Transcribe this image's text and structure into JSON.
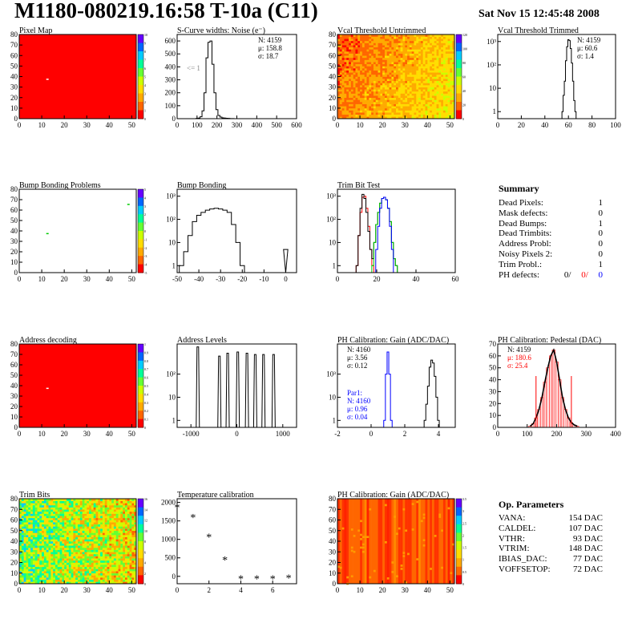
{
  "header": {
    "title": "M1180-080219.16:58 T-10a (C11)",
    "date": "Sat Nov 15 12:45:48 2008"
  },
  "colors": {
    "red": "#ff0000",
    "blue": "#0000ff",
    "green": "#00cc00",
    "black": "#000000"
  },
  "palette": [
    "#ff0000",
    "#ff6600",
    "#ffaa00",
    "#ffdd00",
    "#ccff00",
    "#66ff33",
    "#00ff99",
    "#00ccff",
    "#0066ff",
    "#6600ff"
  ],
  "chart_data": [
    {
      "id": "pixel_map",
      "type": "heatmap",
      "title": "Pixel Map",
      "xlim": [
        0,
        52
      ],
      "ylim": [
        0,
        80
      ],
      "xticks": [
        "0",
        "10",
        "20",
        "30",
        "40",
        "50"
      ],
      "yticks": [
        "0",
        "10",
        "20",
        "30",
        "40",
        "50",
        "60",
        "70",
        "80"
      ],
      "zlim": [
        0,
        10
      ],
      "zticks": [
        "0",
        "1",
        "2",
        "3",
        "4",
        "5",
        "6",
        "7",
        "8",
        "9",
        "10"
      ],
      "fill": "uniform red",
      "special_pixels": [
        {
          "x": 12,
          "y": 38,
          "value": 0
        }
      ]
    },
    {
      "id": "scurve",
      "type": "histogram",
      "title": "S-Curve widths: Noise (e⁻)",
      "xlim": [
        0,
        600
      ],
      "ylim": [
        0,
        650
      ],
      "log": false,
      "xticks": [
        "0",
        "100",
        "200",
        "300",
        "400",
        "500",
        "600"
      ],
      "yticks": [
        "0",
        "100",
        "200",
        "300",
        "400",
        "500",
        "600"
      ],
      "stats": [
        "N: 4159",
        "μ: 158.8",
        "σ: 18.7"
      ],
      "annotation": "<= 1",
      "x": [
        90,
        100,
        110,
        120,
        130,
        140,
        150,
        160,
        170,
        180,
        190,
        200,
        210,
        220,
        230,
        240,
        250,
        260,
        270,
        280,
        290
      ],
      "values": [
        0,
        2,
        5,
        15,
        60,
        200,
        470,
        590,
        600,
        420,
        200,
        70,
        25,
        12,
        6,
        5,
        3,
        2,
        1,
        1,
        0
      ]
    },
    {
      "id": "vcal_untrimmed",
      "type": "heatmap",
      "title": "Vcal Threshold Untrimmed",
      "xlim": [
        0,
        52
      ],
      "ylim": [
        0,
        80
      ],
      "xticks": [
        "0",
        "10",
        "20",
        "30",
        "40",
        "50"
      ],
      "yticks": [
        "0",
        "10",
        "20",
        "30",
        "40",
        "50",
        "60",
        "70",
        "80"
      ],
      "zlim": [
        0,
        140
      ],
      "zticks": [
        "0",
        "20",
        "40",
        "60",
        "80",
        "100",
        "120"
      ],
      "fill": "noisy red-orange to yellow-green gradient"
    },
    {
      "id": "vcal_trimmed",
      "type": "histogram",
      "title": "Vcal Threshold Trimmed",
      "xlim": [
        0,
        100
      ],
      "ylim": [
        0.5,
        2000
      ],
      "log": true,
      "xticks": [
        "0",
        "20",
        "40",
        "60",
        "80",
        "100"
      ],
      "yticks": [
        "1",
        "10",
        "10²",
        "10³"
      ],
      "stats": [
        "N: 4159",
        "μ: 60.6",
        "σ: 1.4"
      ],
      "x": [
        55,
        56,
        57,
        58,
        59,
        60,
        61,
        62,
        63,
        64,
        65,
        66
      ],
      "values": [
        1,
        5,
        20,
        150,
        600,
        1200,
        1100,
        500,
        120,
        20,
        3,
        1
      ]
    },
    {
      "id": "bump_map",
      "type": "heatmap",
      "title": "Bump Bonding Problems",
      "xlim": [
        0,
        52
      ],
      "ylim": [
        0,
        80
      ],
      "xticks": [
        "0",
        "10",
        "20",
        "30",
        "40",
        "50"
      ],
      "yticks": [
        "0",
        "10",
        "20",
        "30",
        "40",
        "50",
        "60",
        "70",
        "80"
      ],
      "zlim": [
        -5,
        5
      ],
      "zticks": [
        "-5",
        "-4",
        "-3",
        "-2",
        "-1",
        "0",
        "1",
        "2",
        "3",
        "4",
        "5"
      ],
      "fill": "white",
      "special_pixels": [
        {
          "x": 12,
          "y": 38
        },
        {
          "x": 48,
          "y": 66
        }
      ]
    },
    {
      "id": "bump_hist",
      "type": "histogram",
      "title": "Bump Bonding",
      "xlim": [
        -50,
        5
      ],
      "ylim": [
        0.5,
        2000
      ],
      "log": true,
      "xticks": [
        "-50",
        "-40",
        "-30",
        "-20",
        "-10",
        "0"
      ],
      "yticks": [
        "1",
        "10",
        "10²",
        "10³"
      ],
      "x": [
        -48,
        -46,
        -44,
        -42,
        -40,
        -38,
        -36,
        -34,
        -32,
        -30,
        -28,
        -26,
        -24,
        -22,
        -20,
        -18,
        -1,
        0,
        1
      ],
      "values": [
        1,
        4,
        20,
        80,
        150,
        200,
        250,
        280,
        300,
        280,
        250,
        200,
        60,
        10,
        1,
        0,
        0,
        5,
        0
      ]
    },
    {
      "id": "trim_bit",
      "type": "histogram",
      "title": "Trim Bit Test",
      "xlim": [
        0,
        60
      ],
      "ylim": [
        0.5,
        2000
      ],
      "log": true,
      "xticks": [
        "0",
        "20",
        "40",
        "60"
      ],
      "yticks": [
        "1",
        "10",
        "10²",
        "10³"
      ],
      "series": [
        {
          "color": "#ff0000",
          "x": [
            10,
            11,
            12,
            13,
            14,
            15,
            16,
            17,
            18
          ],
          "values": [
            1,
            20,
            200,
            900,
            1000,
            300,
            50,
            5,
            1
          ]
        },
        {
          "color": "#000000",
          "x": [
            10,
            11,
            12,
            13,
            14,
            15,
            16,
            17,
            18,
            19,
            20,
            21,
            22,
            23,
            24,
            25,
            26,
            27,
            28,
            29,
            30,
            31
          ],
          "values": [
            1,
            20,
            300,
            1200,
            800,
            200,
            30,
            5,
            2,
            10,
            60,
            200,
            500,
            800,
            900,
            700,
            300,
            80,
            10,
            2,
            1,
            0
          ]
        },
        {
          "color": "#00cc00",
          "x": [
            18,
            19,
            20,
            21,
            22,
            23,
            24,
            25,
            26,
            27,
            28,
            29,
            30,
            31
          ],
          "values": [
            1,
            10,
            60,
            200,
            500,
            800,
            900,
            700,
            300,
            80,
            10,
            2,
            1,
            0
          ]
        },
        {
          "color": "#0000ff",
          "x": [
            20,
            21,
            22,
            23,
            24,
            25,
            26,
            27,
            28
          ],
          "values": [
            5,
            50,
            300,
            800,
            900,
            700,
            300,
            50,
            5
          ]
        }
      ]
    },
    {
      "id": "addr_map",
      "type": "heatmap",
      "title": "Address decoding",
      "xlim": [
        0,
        52
      ],
      "ylim": [
        0,
        80
      ],
      "xticks": [
        "0",
        "10",
        "20",
        "30",
        "40",
        "50"
      ],
      "yticks": [
        "0",
        "10",
        "20",
        "30",
        "40",
        "50",
        "60",
        "70",
        "80"
      ],
      "zlim": [
        0,
        1
      ],
      "zticks": [
        "0",
        "0.1",
        "0.2",
        "0.3",
        "0.4",
        "0.5",
        "0.6",
        "0.7",
        "0.8",
        "0.9",
        "1"
      ],
      "fill": "uniform red",
      "special_pixels": [
        {
          "x": 12,
          "y": 38,
          "value": 0
        }
      ]
    },
    {
      "id": "addr_levels",
      "type": "histogram",
      "title": "Address Levels",
      "xlim": [
        -1300,
        1300
      ],
      "ylim": [
        0.5,
        2000
      ],
      "log": true,
      "xticks": [
        "-1000",
        "0",
        "1000"
      ],
      "yticks": [
        "1",
        "10",
        "10²"
      ],
      "peaks": [
        {
          "x": -850,
          "h": 1500
        },
        {
          "x": -380,
          "h": 600
        },
        {
          "x": -200,
          "h": 800
        },
        {
          "x": 20,
          "h": 900
        },
        {
          "x": 220,
          "h": 800
        },
        {
          "x": 400,
          "h": 700
        },
        {
          "x": 580,
          "h": 700
        },
        {
          "x": 800,
          "h": 700
        }
      ]
    },
    {
      "id": "ph_gain",
      "type": "histogram",
      "title": "PH Calibration: Gain (ADC/DAC)",
      "xlim": [
        -2,
        5
      ],
      "ylim": [
        0.5,
        2000
      ],
      "log": true,
      "xticks": [
        "-2",
        "0",
        "2",
        "4"
      ],
      "yticks": [
        "1",
        "10",
        "10³"
      ],
      "stats": [
        "N: 4160",
        "μ: 3.56",
        "σ: 0.12"
      ],
      "stats2_title": "Par1:",
      "stats2": [
        "N: 4160",
        "μ: 0.96",
        "σ: 0.04"
      ],
      "series": [
        {
          "color": "#000000",
          "x": [
            3.2,
            3.3,
            3.4,
            3.5,
            3.6,
            3.7,
            3.8,
            3.9,
            4.0
          ],
          "values": [
            1,
            5,
            30,
            200,
            400,
            300,
            80,
            10,
            1
          ]
        },
        {
          "color": "#0000ff",
          "x": [
            0.8,
            0.9,
            1.0,
            1.1,
            1.2
          ],
          "values": [
            1,
            100,
            900,
            100,
            1
          ]
        }
      ]
    },
    {
      "id": "ph_pedestal",
      "type": "histogram",
      "title": "PH Calibration: Pedestal (DAC)",
      "xlim": [
        0,
        400
      ],
      "ylim": [
        0,
        70
      ],
      "log": false,
      "xticks": [
        "0",
        "100",
        "200",
        "300",
        "400"
      ],
      "yticks": [
        "0",
        "10",
        "20",
        "30",
        "40",
        "50",
        "60",
        "70"
      ],
      "stats": [
        "N: 4159"
      ],
      "stats_red": [
        "μ: 180.6",
        "σ: 25.4"
      ],
      "x": [
        110,
        120,
        130,
        140,
        150,
        160,
        170,
        180,
        190,
        200,
        210,
        220,
        230,
        240,
        250,
        260,
        270
      ],
      "values": [
        1,
        3,
        8,
        15,
        25,
        38,
        50,
        60,
        65,
        55,
        40,
        25,
        15,
        8,
        4,
        2,
        1
      ]
    },
    {
      "id": "trim_bits",
      "type": "heatmap",
      "title": "Trim Bits",
      "xlim": [
        0,
        52
      ],
      "ylim": [
        0,
        80
      ],
      "xticks": [
        "0",
        "10",
        "20",
        "30",
        "40",
        "50"
      ],
      "yticks": [
        "0",
        "10",
        "20",
        "30",
        "40",
        "50",
        "60",
        "70",
        "80"
      ],
      "zlim": [
        0,
        16
      ],
      "zticks": [
        "0",
        "2",
        "4",
        "6",
        "8",
        "10",
        "12",
        "14",
        "16"
      ],
      "fill": "noisy green/yellow"
    },
    {
      "id": "temp_calib",
      "type": "scatter",
      "title": "Temperature calibration",
      "xlim": [
        0,
        7.5
      ],
      "ylim": [
        -200,
        2100
      ],
      "xticks": [
        "0",
        "2",
        "4",
        "6"
      ],
      "yticks": [
        "0",
        "500",
        "1000",
        "1500",
        "2000"
      ],
      "x": [
        0,
        1,
        2,
        3,
        4,
        5,
        6,
        7
      ],
      "values": [
        1850,
        1580,
        1050,
        430,
        -80,
        -80,
        -80,
        -60
      ]
    },
    {
      "id": "ph_gain_map",
      "type": "heatmap",
      "title": "PH Calibration: Gain (ADC/DAC)",
      "xlim": [
        0,
        52
      ],
      "ylim": [
        0,
        80
      ],
      "xticks": [
        "0",
        "10",
        "20",
        "30",
        "40",
        "50"
      ],
      "yticks": [
        "0",
        "10",
        "20",
        "30",
        "40",
        "50",
        "60",
        "70",
        "80"
      ],
      "zlim": [
        0,
        4
      ],
      "zticks": [
        "0",
        "0.5",
        "1",
        "1.5",
        "2",
        "2.5",
        "3",
        "3.5"
      ],
      "fill": "red/orange vertical stripes"
    }
  ],
  "summary": {
    "title": "Summary",
    "rows": [
      {
        "label": "Dead Pixels:",
        "value": "1"
      },
      {
        "label": "Mask defects:",
        "value": "0"
      },
      {
        "label": "Dead Bumps:",
        "value": "1"
      },
      {
        "label": "Dead Trimbits:",
        "value": "0"
      },
      {
        "label": "Address Probl:",
        "value": "0"
      },
      {
        "label": "Noisy Pixels 2:",
        "value": "0"
      },
      {
        "label": "Trim Probl.:",
        "value": "1"
      }
    ],
    "ph_label": "PH defects:",
    "ph_values": [
      "0/",
      "0/",
      "0"
    ]
  },
  "params": {
    "title": "Op. Parameters",
    "rows": [
      {
        "label": "VANA:",
        "value": "154 DAC"
      },
      {
        "label": "CALDEL:",
        "value": "107 DAC"
      },
      {
        "label": "VTHR:",
        "value": "93 DAC"
      },
      {
        "label": "VTRIM:",
        "value": "148 DAC"
      },
      {
        "label": "IBIAS_DAC:",
        "value": "77 DAC"
      },
      {
        "label": "VOFFSETOP:",
        "value": "72 DAC"
      }
    ]
  }
}
